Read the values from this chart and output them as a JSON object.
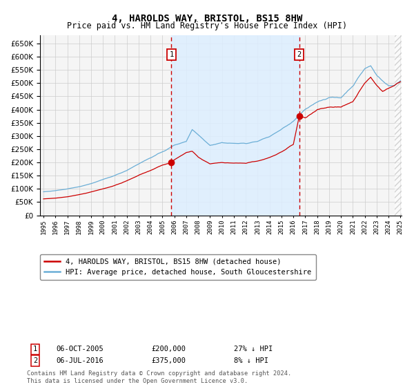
{
  "title": "4, HAROLDS WAY, BRISTOL, BS15 8HW",
  "subtitle": "Price paid vs. HM Land Registry's House Price Index (HPI)",
  "legend_line1": "4, HAROLDS WAY, BRISTOL, BS15 8HW (detached house)",
  "legend_line2": "HPI: Average price, detached house, South Gloucestershire",
  "annotation1_label": "1",
  "annotation1_date": "06-OCT-2005",
  "annotation1_price": "£200,000",
  "annotation1_hpi": "27% ↓ HPI",
  "annotation1_year": 2005.75,
  "annotation1_value": 200000,
  "annotation2_label": "2",
  "annotation2_date": "06-JUL-2016",
  "annotation2_price": "£375,000",
  "annotation2_hpi": "8% ↓ HPI",
  "annotation2_year": 2016.5,
  "annotation2_value": 375000,
  "footer": "Contains HM Land Registry data © Crown copyright and database right 2024.\nThis data is licensed under the Open Government Licence v3.0.",
  "hpi_color": "#6BAED6",
  "price_color": "#CC0000",
  "vline_color": "#CC0000",
  "fill_color": "#DDEEFF",
  "background_color": "#F5F5F5",
  "grid_color": "#CCCCCC",
  "ylim": [
    0,
    680000
  ],
  "yticks": [
    0,
    50000,
    100000,
    150000,
    200000,
    250000,
    300000,
    350000,
    400000,
    450000,
    500000,
    550000,
    600000,
    650000
  ],
  "xmin": 1995.0,
  "xmax": 2025.0,
  "hatch_start": 2024.5
}
